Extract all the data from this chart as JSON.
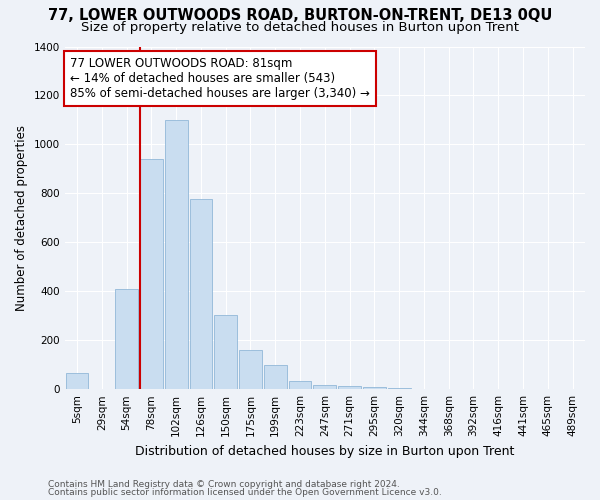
{
  "title": "77, LOWER OUTWOODS ROAD, BURTON-ON-TRENT, DE13 0QU",
  "subtitle": "Size of property relative to detached houses in Burton upon Trent",
  "xlabel": "Distribution of detached houses by size in Burton upon Trent",
  "ylabel": "Number of detached properties",
  "categories": [
    "5sqm",
    "29sqm",
    "54sqm",
    "78sqm",
    "102sqm",
    "126sqm",
    "150sqm",
    "175sqm",
    "199sqm",
    "223sqm",
    "247sqm",
    "271sqm",
    "295sqm",
    "320sqm",
    "344sqm",
    "368sqm",
    "392sqm",
    "416sqm",
    "441sqm",
    "465sqm",
    "489sqm"
  ],
  "values": [
    65,
    0,
    410,
    940,
    1100,
    775,
    305,
    160,
    100,
    35,
    18,
    12,
    10,
    5,
    2,
    2,
    2,
    1,
    1,
    1,
    1
  ],
  "bar_color": "#c9ddf0",
  "bar_edge_color": "#92b8d8",
  "vline_index": 3,
  "vline_color": "#cc0000",
  "ylim": [
    0,
    1400
  ],
  "yticks": [
    0,
    200,
    400,
    600,
    800,
    1000,
    1200,
    1400
  ],
  "annotation_line1": "77 LOWER OUTWOODS ROAD: 81sqm",
  "annotation_line2": "← 14% of detached houses are smaller (543)",
  "annotation_line3": "85% of semi-detached houses are larger (3,340) →",
  "annotation_box_facecolor": "#ffffff",
  "annotation_box_edgecolor": "#cc0000",
  "footer_line1": "Contains HM Land Registry data © Crown copyright and database right 2024.",
  "footer_line2": "Contains public sector information licensed under the Open Government Licence v3.0.",
  "background_color": "#eef2f8",
  "grid_color": "#ffffff",
  "title_fontsize": 10.5,
  "subtitle_fontsize": 9.5,
  "xlabel_fontsize": 9,
  "ylabel_fontsize": 8.5,
  "tick_fontsize": 7.5,
  "footer_fontsize": 6.5
}
